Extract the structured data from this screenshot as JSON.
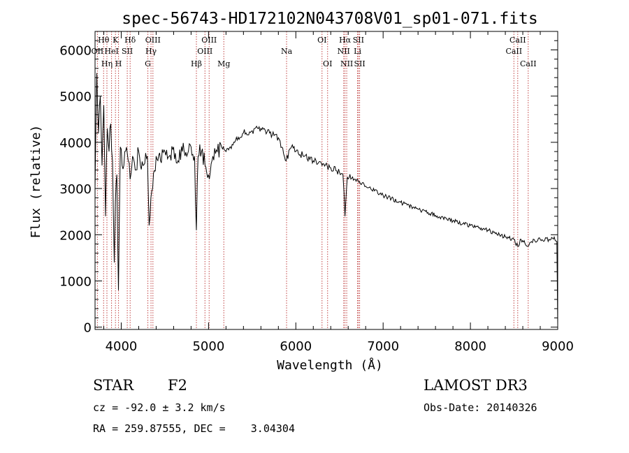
{
  "chart_data": {
    "type": "line",
    "title": "spec-56743-HD172102N043708V01_sp01-071.fits",
    "xlabel": "Wavelength (Å)",
    "ylabel": "Flux (relative)",
    "xlim": [
      3700,
      9000
    ],
    "ylim": [
      -50,
      6400
    ],
    "x_ticks": [
      4000,
      5000,
      6000,
      7000,
      8000,
      9000
    ],
    "y_ticks": [
      0,
      1000,
      2000,
      3000,
      4000,
      5000,
      6000
    ],
    "series": [
      {
        "name": "flux",
        "x": [
          3700,
          3720,
          3740,
          3760,
          3780,
          3800,
          3820,
          3840,
          3860,
          3880,
          3900,
          3920,
          3933,
          3950,
          3968,
          3990,
          4010,
          4040,
          4080,
          4102,
          4130,
          4160,
          4200,
          4250,
          4300,
          4320,
          4340,
          4360,
          4400,
          4450,
          4500,
          4550,
          4600,
          4650,
          4700,
          4750,
          4800,
          4840,
          4861,
          4880,
          4920,
          4960,
          5000,
          5050,
          5100,
          5150,
          5200,
          5300,
          5400,
          5500,
          5600,
          5700,
          5800,
          5890,
          5950,
          6000,
          6100,
          6200,
          6300,
          6400,
          6500,
          6540,
          6563,
          6590,
          6650,
          6700,
          6800,
          6900,
          7000,
          7200,
          7400,
          7600,
          7800,
          8000,
          8200,
          8400,
          8498,
          8542,
          8580,
          8662,
          8700,
          8800,
          8900,
          8960,
          8990,
          9000
        ],
        "y": [
          3000,
          5500,
          4200,
          5000,
          3500,
          4800,
          2400,
          4300,
          3800,
          4400,
          3600,
          1400,
          2700,
          3300,
          800,
          3900,
          3500,
          3800,
          3600,
          3200,
          3700,
          3400,
          3800,
          3500,
          3700,
          2200,
          2800,
          3000,
          3700,
          3600,
          3800,
          3700,
          3900,
          3600,
          3800,
          3700,
          3900,
          3700,
          2100,
          3700,
          3800,
          3500,
          3300,
          3700,
          3800,
          3900,
          3800,
          4000,
          4200,
          4250,
          4300,
          4200,
          4100,
          3600,
          3900,
          3800,
          3700,
          3600,
          3500,
          3450,
          3350,
          3300,
          2400,
          3250,
          3250,
          3200,
          3050,
          2950,
          2850,
          2700,
          2550,
          2420,
          2300,
          2200,
          2100,
          1950,
          1900,
          1750,
          1900,
          1750,
          1850,
          1900,
          1900,
          1950,
          1850,
          50
        ]
      }
    ],
    "spectral_lines": [
      {
        "label": "OII",
        "wavelength": 3727,
        "row": 2
      },
      {
        "label": "Hθ",
        "wavelength": 3798,
        "row": 1
      },
      {
        "label": "Hη",
        "wavelength": 3836,
        "row": 3
      },
      {
        "label": "HeI",
        "wavelength": 3889,
        "row": 2
      },
      {
        "label": "K",
        "wavelength": 3934,
        "row": 1
      },
      {
        "label": "H",
        "wavelength": 3969,
        "row": 3
      },
      {
        "label": "SII",
        "wavelength": 4069,
        "row": 2
      },
      {
        "label": "Hδ",
        "wavelength": 4102,
        "row": 1
      },
      {
        "label": "G",
        "wavelength": 4305,
        "row": 3
      },
      {
        "label": "Hγ",
        "wavelength": 4341,
        "row": 2
      },
      {
        "label": "OIII",
        "wavelength": 4363,
        "row": 1
      },
      {
        "label": "Hβ",
        "wavelength": 4861,
        "row": 3
      },
      {
        "label": "OIII",
        "wavelength": 4959,
        "row": 2
      },
      {
        "label": "OIII",
        "wavelength": 5007,
        "row": 1
      },
      {
        "label": "Mg",
        "wavelength": 5175,
        "row": 3
      },
      {
        "label": "Na",
        "wavelength": 5894,
        "row": 2
      },
      {
        "label": "OI",
        "wavelength": 6300,
        "row": 1
      },
      {
        "label": "OI",
        "wavelength": 6364,
        "row": 3
      },
      {
        "label": "NII",
        "wavelength": 6548,
        "row": 2
      },
      {
        "label": "Hα",
        "wavelength": 6563,
        "row": 1
      },
      {
        "label": "NII",
        "wavelength": 6583,
        "row": 3
      },
      {
        "label": "SII",
        "wavelength": 6717,
        "row": 1
      },
      {
        "label": "SII",
        "wavelength": 6731,
        "row": 3
      },
      {
        "label": "Li",
        "wavelength": 6707,
        "row": 2
      },
      {
        "label": "CaII",
        "wavelength": 8498,
        "row": 2
      },
      {
        "label": "CaII",
        "wavelength": 8542,
        "row": 1
      },
      {
        "label": "CaII",
        "wavelength": 8662,
        "row": 3
      }
    ]
  },
  "info": {
    "class_label": "STAR",
    "subclass": "F2",
    "survey": "LAMOST DR3",
    "redshift": "cz = -92.0 ± 3.2 km/s",
    "obs_date": "Obs-Date: 20140326",
    "coords": "RA = 259.87555, DEC =    3.04304"
  },
  "colors": {
    "spectrum": "#000000",
    "line_markers": "#c04040",
    "axes": "#000000",
    "background": "#ffffff"
  }
}
